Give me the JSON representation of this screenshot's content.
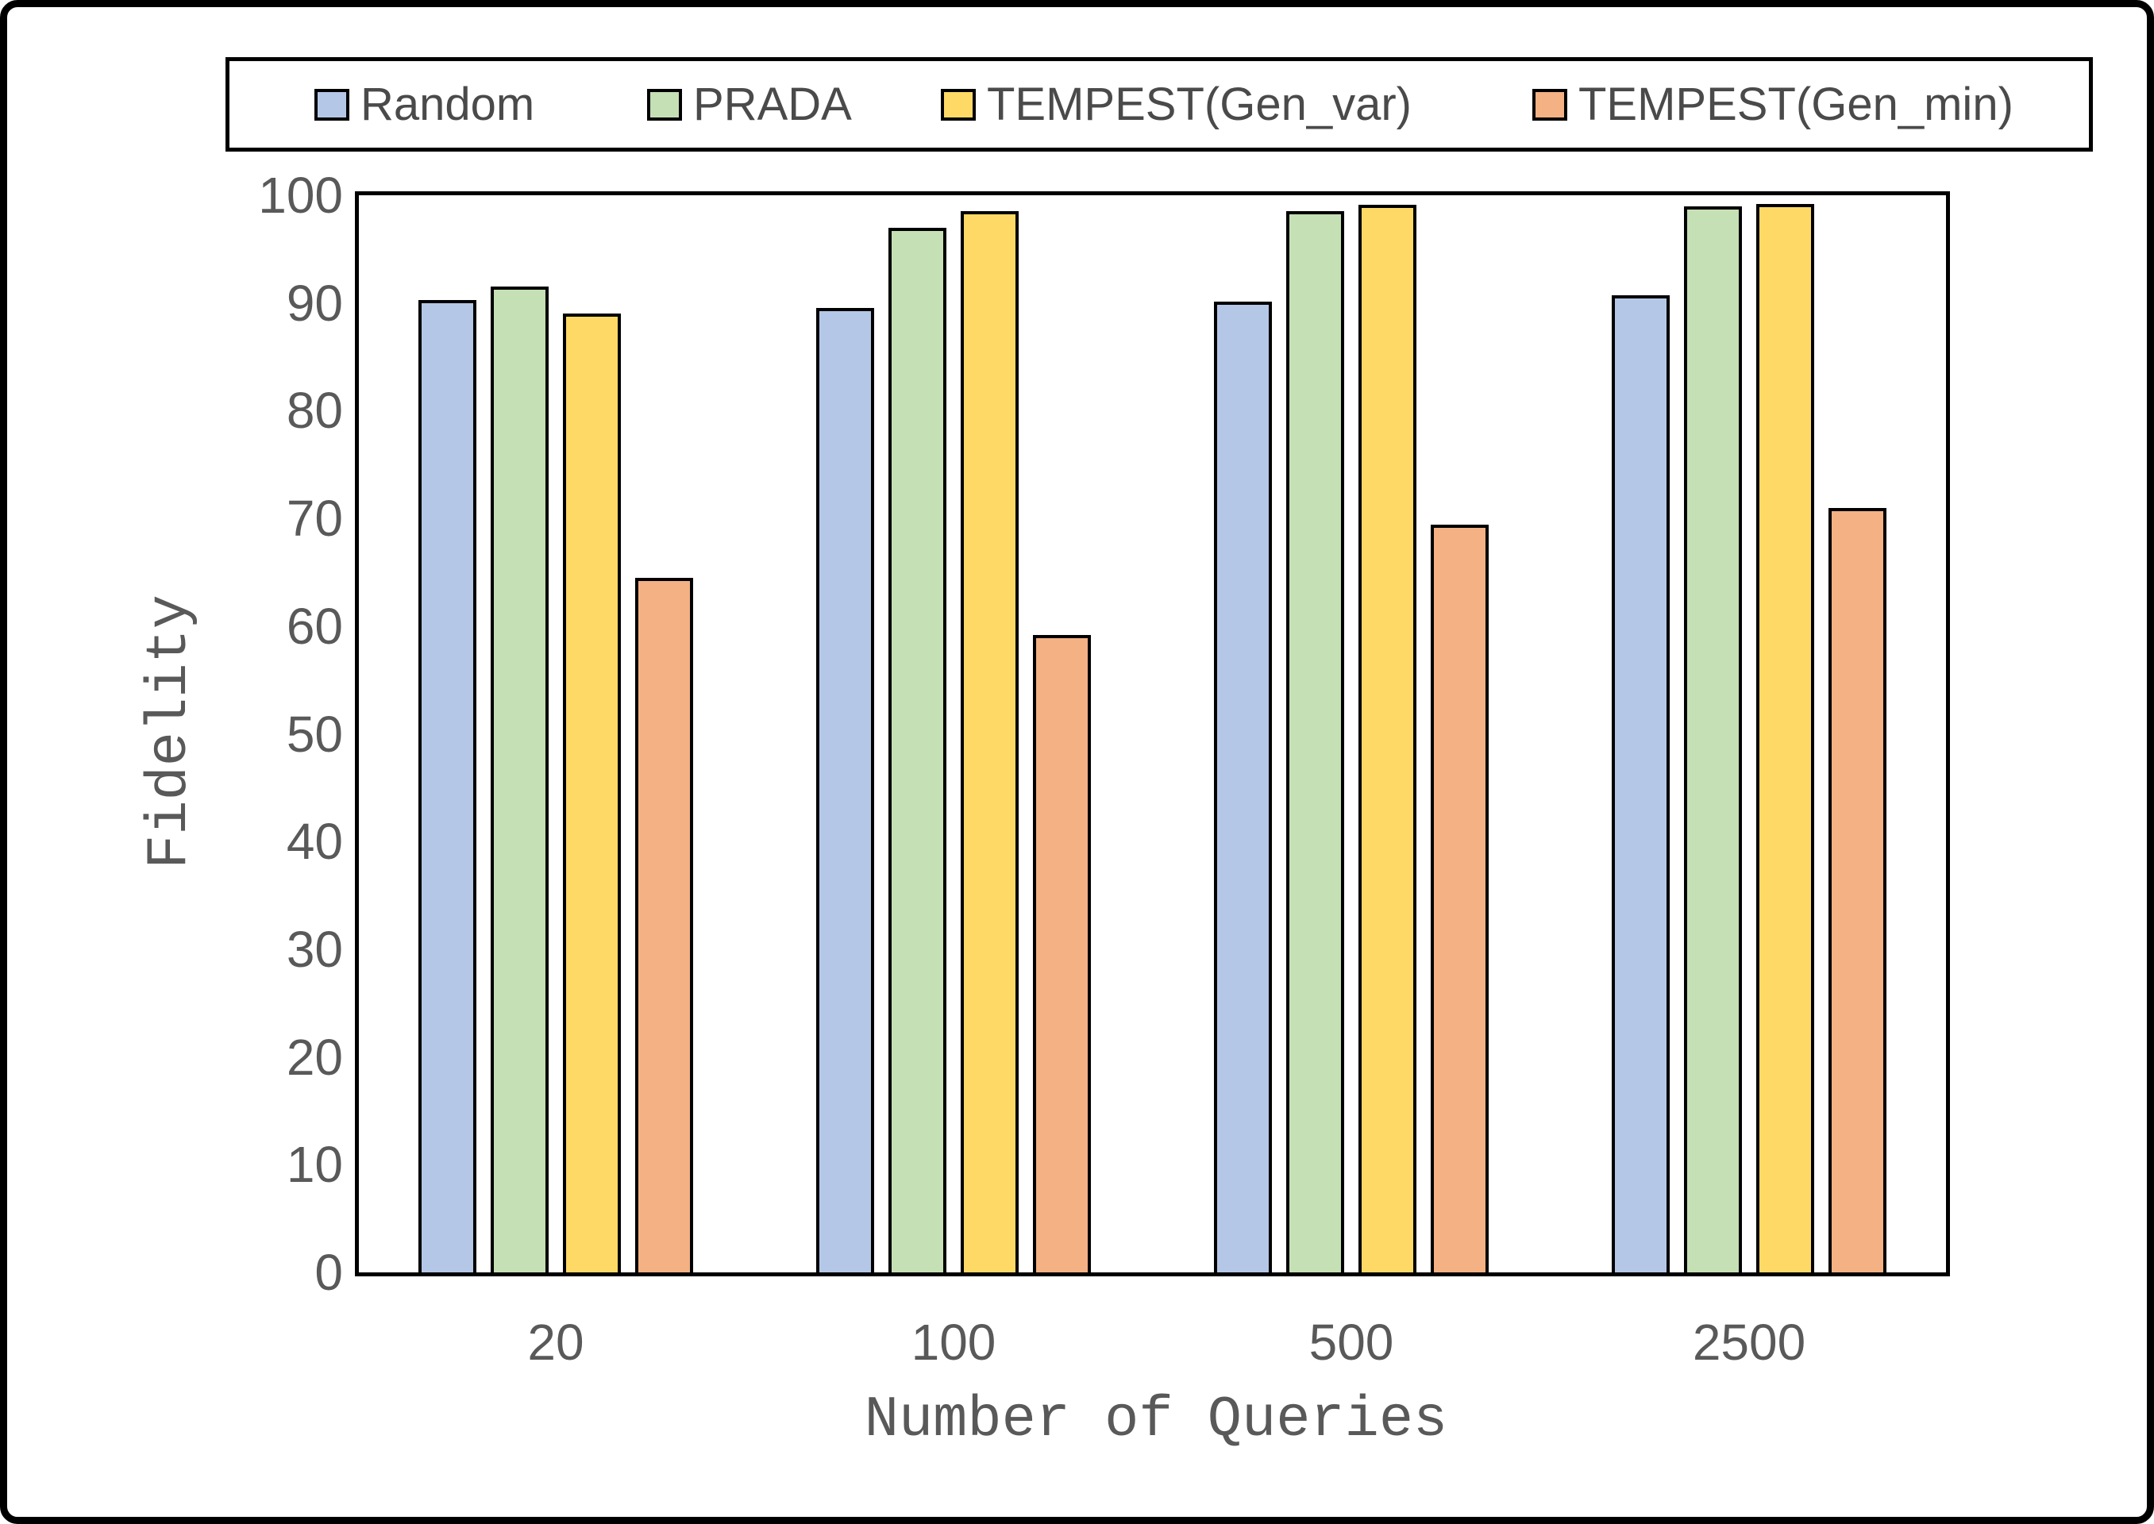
{
  "chart_data": {
    "type": "bar",
    "title": "",
    "categories": [
      "20",
      "100",
      "500",
      "2500"
    ],
    "series": [
      {
        "name": "Random",
        "color": "#B4C7E7",
        "values": [
          90.3,
          89.5,
          90.1,
          90.7
        ]
      },
      {
        "name": "PRADA",
        "color": "#C5E0B4",
        "values": [
          91.5,
          97.0,
          98.5,
          99.0
        ]
      },
      {
        "name": "TEMPEST(Gen_var)",
        "color": "#FFD966",
        "values": [
          89.0,
          98.5,
          99.1,
          99.2
        ]
      },
      {
        "name": "TEMPEST(Gen_min)",
        "color": "#F4B183",
        "values": [
          64.5,
          59.2,
          69.4,
          71.0
        ]
      }
    ],
    "xlabel": "Number of Queries",
    "ylabel": "Fidelity",
    "ylim": [
      0,
      100
    ],
    "ytick_step": 10,
    "grid": false,
    "legend_position": "top"
  },
  "colors": {
    "axis_border": "#000000",
    "tick_text": "#595959",
    "legend_text": "#4a4a4a",
    "background": "#ffffff"
  }
}
